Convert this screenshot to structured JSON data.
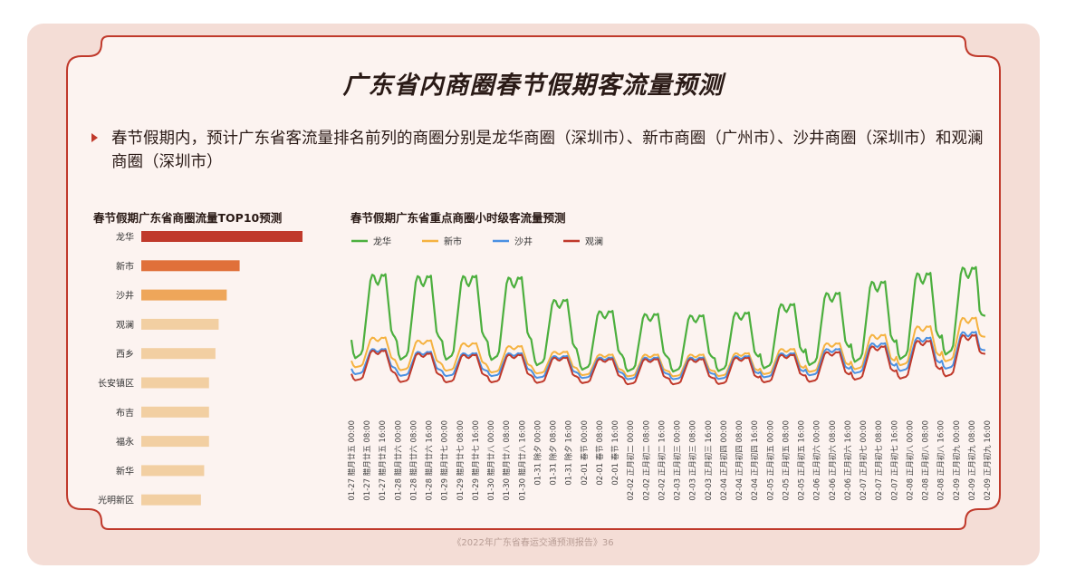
{
  "title": "广东省内商圈春节假期客流量预测",
  "bullet": "春节假期内，预计广东省客流量排名前列的商圈分别是龙华商圈（深圳市）、新市商圈（广州市）、沙井商圈（深圳市）和观澜商圈（深圳市）",
  "footer": "《2022年广东省春运交通预测报告》36",
  "colors": {
    "accent": "#c0392b",
    "background": "#f4ddd6",
    "frame": "#c0392b"
  },
  "chart_data": [
    {
      "type": "bar",
      "orientation": "horizontal",
      "title": "春节假期广东省商圈流量TOP10预测",
      "categories": [
        "龙华",
        "新市",
        "沙井",
        "观澜",
        "西乡",
        "长安镇区",
        "布吉",
        "福永",
        "新华",
        "光明新区"
      ],
      "values": [
        100,
        61,
        53,
        48,
        46,
        42,
        42,
        42,
        39,
        37
      ],
      "colors": [
        "#c0392b",
        "#e0703a",
        "#eea65a",
        "#f2cfa2",
        "#f2cfa2",
        "#f2cfa2",
        "#f2cfa2",
        "#f2cfa2",
        "#f2cfa2",
        "#f2cfa2"
      ],
      "xlim": [
        0,
        100
      ],
      "axis_visible": false
    },
    {
      "type": "line",
      "title": "春节假期广东省重点商圈小时级客流量预测",
      "legend_position": "top-left",
      "x_labels": [
        "01-27 腊月廿五 00:00",
        "01-27 腊月廿五 08:00",
        "01-27 腊月廿五 16:00",
        "01-28 腊月廿六 00:00",
        "01-28 腊月廿六 08:00",
        "01-28 腊月廿六 16:00",
        "01-29 腊月廿七 00:00",
        "01-29 腊月廿七 08:00",
        "01-29 腊月廿七 16:00",
        "01-30 腊月廿八 00:00",
        "01-30 腊月廿八 08:00",
        "01-30 腊月廿八 16:00",
        "01-31 除夕 00:00",
        "01-31 除夕 08:00",
        "01-31 除夕 16:00",
        "02-01 春节 00:00",
        "02-01 春节 08:00",
        "02-01 春节 16:00",
        "02-02 正月初二 00:00",
        "02-02 正月初二 08:00",
        "02-02 正月初二 16:00",
        "02-03 正月初三 00:00",
        "02-03 正月初三 08:00",
        "02-03 正月初三 16:00",
        "02-04 正月初四 00:00",
        "02-04 正月初四 08:00",
        "02-04 正月初四 16:00",
        "02-05 正月初五 00:00",
        "02-05 正月初五 08:00",
        "02-05 正月初五 16:00",
        "02-06 正月初六 00:00",
        "02-06 正月初六 08:00",
        "02-06 正月初六 16:00",
        "02-07 正月初七 00:00",
        "02-07 正月初七 08:00",
        "02-07 正月初七 16:00",
        "02-08 正月初八 00:00",
        "02-08 正月初八 08:00",
        "02-08 正月初八 16:00",
        "02-09 正月初九 00:00",
        "02-09 正月初九 08:00",
        "02-09 正月初九 16:00"
      ],
      "y_axis_visible": false,
      "series": [
        {
          "name": "龙华",
          "color": "#4caf3e",
          "daily_peak": [
            83,
            82,
            82,
            81,
            65,
            57,
            55,
            54,
            56,
            62,
            70,
            78,
            84,
            88
          ],
          "daily_trough": [
            10,
            9,
            9,
            9,
            8,
            6,
            5,
            5,
            5,
            6,
            7,
            8,
            9,
            12
          ],
          "end_value": 55
        },
        {
          "name": "新市",
          "color": "#f5b240",
          "daily_peak": [
            38,
            36,
            34,
            32,
            28,
            26,
            26,
            26,
            27,
            30,
            34,
            40,
            46,
            52
          ],
          "daily_trough": [
            12,
            10,
            10,
            9,
            9,
            8,
            7,
            7,
            7,
            8,
            9,
            10,
            12,
            14
          ],
          "end_value": 40
        },
        {
          "name": "沙井",
          "color": "#4a90e2",
          "daily_peak": [
            30,
            28,
            27,
            27,
            25,
            24,
            24,
            24,
            25,
            27,
            30,
            34,
            38,
            42
          ],
          "daily_trough": [
            8,
            7,
            7,
            7,
            6,
            6,
            5,
            5,
            5,
            6,
            7,
            8,
            9,
            10
          ],
          "end_value": 30
        },
        {
          "name": "观澜",
          "color": "#c0392b",
          "daily_peak": [
            29,
            27,
            26,
            26,
            24,
            23,
            23,
            23,
            24,
            26,
            28,
            32,
            36,
            40
          ],
          "daily_trough": [
            3,
            2,
            2,
            2,
            2,
            2,
            1,
            1,
            1,
            2,
            2,
            3,
            3,
            4
          ],
          "end_value": 28
        }
      ]
    }
  ]
}
